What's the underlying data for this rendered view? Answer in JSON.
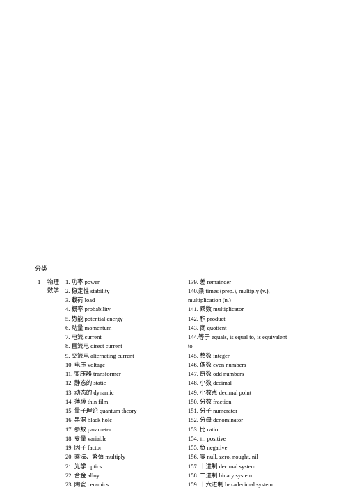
{
  "section_heading": "分类",
  "table": {
    "row_number": "1",
    "category_lines": [
      "物理",
      "数学"
    ],
    "left_terms": [
      "1.  功率  power",
      "2.  稳定性  stability",
      "3.  载荷  load",
      "4.  概率  probability",
      "5.  势能  potential energy",
      "6.  动量  momentum",
      "7.  电流  current",
      "8.  直流电  direct current",
      "9.  交流电 alternating current",
      "10.  电压  voltage",
      "11.  变压器 transformer",
      "12.  静态的  static",
      "13.  动态的  dynamic",
      "14.  薄膜  thin film",
      "15.  量子理论 quantum theory",
      "16.  黑洞  black hole",
      "17.  参数 parameter",
      "18.  变量  variable",
      "19.  因子 factor",
      "20.  乘法、繁殖 multiply",
      "21.  光学  optics",
      "22.  合金 alloy",
      "23.  陶瓷 ceramics"
    ],
    "right_terms": [
      "139.  差  remainder",
      "140.乘 times   (prep.),   multiply   (v.),",
      "multiplication (n.)",
      "141.  乘数  multiplicator",
      "142.  积  product",
      "143.  商  quotient",
      "144.等于  equals, is equal to, is equivalent",
      "to",
      "145.  整数  integer",
      "146.  偶数 even numbers",
      "147.  奇数 odd numbers",
      "148.  小数  decimal",
      "149.  小数点  decimal point",
      "150.  分数  fraction",
      "151.  分子  numerator",
      "152.  分母  denominator",
      "153.  比  ratio",
      "154.  正  positive",
      "155.  负  negative",
      "156.  零  null, zero, nought, nil",
      "157.  十进制  decimal system",
      "158.  二进制  binary system",
      "159.  十六进制  hexadecimal system"
    ]
  },
  "colors": {
    "background": "#ffffff",
    "text": "#000000",
    "border": "#000000"
  },
  "typography": {
    "font_family": "SimSun",
    "font_size_pt": 8.5,
    "line_height": 1.5
  }
}
